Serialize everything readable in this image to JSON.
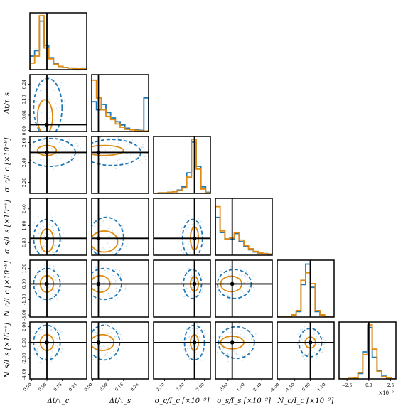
{
  "chart_data": {
    "type": "corner",
    "parameters": [
      {
        "label": "Δt/τ_c",
        "truth": 0.08,
        "ticks": [
          {
            "v": 0.0,
            "t": "0.00"
          },
          {
            "v": 0.08,
            "t": "0.08"
          },
          {
            "v": 0.16,
            "t": "0.16"
          },
          {
            "v": 0.24,
            "t": "0.24"
          }
        ]
      },
      {
        "label": "Δt/τ_s",
        "truth": 0.03,
        "ticks": [
          {
            "v": 0.0,
            "t": "0.00"
          },
          {
            "v": 0.08,
            "t": "0.08"
          },
          {
            "v": 0.16,
            "t": "0.16"
          },
          {
            "v": 0.24,
            "t": "0.24"
          }
        ]
      },
      {
        "label": "σ_c/I_c [×10⁻⁹]",
        "truth": 2.5,
        "ticks": [
          {
            "v": 2.2,
            "t": "2.20"
          },
          {
            "v": 2.4,
            "t": "2.40"
          },
          {
            "v": 2.6,
            "t": "2.60"
          }
        ]
      },
      {
        "label": "σ_s/I_s [×10⁻⁹]",
        "truth": 1.0,
        "ticks": [
          {
            "v": 0.8,
            "t": "0.80"
          },
          {
            "v": 1.6,
            "t": "1.60"
          },
          {
            "v": 2.4,
            "t": "2.40"
          }
        ]
      },
      {
        "label": "N_c/I_c [×10⁻⁹]",
        "truth": 0.0,
        "ticks": [
          {
            "v": -3.0,
            "t": "-3.00"
          },
          {
            "v": -1.5,
            "t": "-1.50"
          },
          {
            "v": 0.0,
            "t": "0.00"
          },
          {
            "v": 1.5,
            "t": "1.50"
          }
        ]
      },
      {
        "label": "N_s/I_s [×10⁻⁹]",
        "truth": 0.0,
        "ticks": [
          {
            "v": -4.0,
            "t": "-4.00"
          },
          {
            "v": -2.0,
            "t": "-2.00"
          },
          {
            "v": 0.0,
            "t": "0.00"
          },
          {
            "v": 2.0,
            "t": "2.00"
          }
        ]
      }
    ],
    "last_axis_ticks": [
      {
        "v": -2.5,
        "t": "−2.5"
      },
      {
        "v": 0.0,
        "t": "0.0"
      },
      {
        "v": 2.5,
        "t": "2.5"
      }
    ],
    "last_axis_offset": "×10⁻⁹",
    "series": [
      {
        "color": "#1f77b4",
        "style": "dashed"
      },
      {
        "color": "#e08a10",
        "style": "solid"
      }
    ],
    "histograms": [
      {
        "blue": [
          0.25,
          0.35,
          0.9,
          0.45,
          0.22,
          0.12,
          0.06,
          0.04,
          0.03,
          0.03,
          0.02,
          0.03
        ],
        "orange": [
          0.12,
          0.25,
          1.0,
          0.4,
          0.2,
          0.1,
          0.06,
          0.04,
          0.03,
          0.02,
          0.02,
          0.02
        ]
      },
      {
        "blue": [
          0.55,
          0.4,
          0.5,
          0.35,
          0.25,
          0.18,
          0.12,
          0.06,
          0.04,
          0.03,
          0.02,
          0.62
        ],
        "orange": [
          0.95,
          0.62,
          0.4,
          0.28,
          0.22,
          0.14,
          0.08,
          0.04,
          0.03,
          0.02,
          0.01,
          0.01
        ]
      },
      {
        "blue": [
          0.0,
          0.01,
          0.01,
          0.02,
          0.03,
          0.06,
          0.12,
          0.38,
          0.95,
          0.5,
          0.12,
          0.02
        ],
        "orange": [
          0.0,
          0.01,
          0.01,
          0.02,
          0.03,
          0.05,
          0.1,
          0.3,
          1.0,
          0.45,
          0.08,
          0.01
        ]
      },
      {
        "blue": [
          0.7,
          0.42,
          0.3,
          0.3,
          0.4,
          0.25,
          0.16,
          0.1,
          0.06,
          0.04,
          0.03,
          0.02
        ],
        "orange": [
          0.9,
          0.45,
          0.3,
          0.32,
          0.42,
          0.28,
          0.18,
          0.12,
          0.07,
          0.04,
          0.03,
          0.02
        ]
      },
      {
        "blue": [
          0.0,
          0.0,
          0.01,
          0.03,
          0.1,
          0.6,
          0.98,
          0.55,
          0.1,
          0.03,
          0.01,
          0.0
        ],
        "orange": [
          0.0,
          0.0,
          0.01,
          0.04,
          0.12,
          0.68,
          0.82,
          0.62,
          0.12,
          0.04,
          0.01,
          0.0
        ]
      },
      {
        "blue": [
          0.0,
          0.0,
          0.01,
          0.02,
          0.1,
          0.5,
          0.95,
          0.4,
          0.15,
          0.05,
          0.02,
          0.0
        ],
        "orange": [
          0.0,
          0.0,
          0.01,
          0.02,
          0.12,
          0.45,
          1.0,
          0.55,
          0.14,
          0.04,
          0.02,
          0.0
        ]
      }
    ],
    "contours": {
      "1-0": {
        "blue": [
          {
            "cx": 0.085,
            "cy": 0.12,
            "rx": 0.075,
            "ry": 0.15
          }
        ],
        "orange": [
          {
            "cx": 0.07,
            "cy": 0.07,
            "rx": 0.04,
            "ry": 0.09
          }
        ]
      },
      "2-0": {
        "blue": [
          {
            "cx": 0.1,
            "cy": 2.5,
            "rx": 0.13,
            "ry": 0.14
          }
        ],
        "orange": [
          {
            "cx": 0.08,
            "cy": 2.52,
            "rx": 0.05,
            "ry": 0.05
          }
        ]
      },
      "2-1": {
        "blue": [
          {
            "cx": 0.1,
            "cy": 2.5,
            "rx": 0.15,
            "ry": 0.13
          }
        ],
        "orange": [
          {
            "cx": 0.06,
            "cy": 2.52,
            "rx": 0.1,
            "ry": 0.05
          }
        ]
      },
      "3-0": {
        "blue": [
          {
            "cx": 0.08,
            "cy": 1.0,
            "rx": 0.07,
            "ry": 0.9
          }
        ],
        "orange": [
          {
            "cx": 0.08,
            "cy": 0.9,
            "rx": 0.035,
            "ry": 0.55
          }
        ]
      },
      "3-1": {
        "blue": [
          {
            "cx": 0.07,
            "cy": 1.05,
            "rx": 0.09,
            "ry": 0.95
          }
        ],
        "orange": [
          {
            "cx": 0.06,
            "cy": 0.85,
            "rx": 0.07,
            "ry": 0.5
          }
        ]
      },
      "3-2": {
        "blue": [
          {
            "cx": 2.48,
            "cy": 1.0,
            "rx": 0.1,
            "ry": 0.9
          }
        ],
        "orange": [
          {
            "cx": 2.5,
            "cy": 1.0,
            "rx": 0.04,
            "ry": 0.55
          }
        ]
      },
      "4-0": {
        "blue": [
          {
            "cx": 0.08,
            "cy": 0.0,
            "rx": 0.07,
            "ry": 1.5
          }
        ],
        "orange": [
          {
            "cx": 0.08,
            "cy": 0.0,
            "rx": 0.035,
            "ry": 0.8
          }
        ]
      },
      "4-1": {
        "blue": [
          {
            "cx": 0.06,
            "cy": 0.0,
            "rx": 0.09,
            "ry": 1.5
          }
        ],
        "orange": [
          {
            "cx": 0.04,
            "cy": 0.0,
            "rx": 0.05,
            "ry": 0.8
          }
        ]
      },
      "4-2": {
        "blue": [
          {
            "cx": 2.48,
            "cy": 0.0,
            "rx": 0.09,
            "ry": 1.4
          }
        ],
        "orange": [
          {
            "cx": 2.5,
            "cy": 0.0,
            "rx": 0.04,
            "ry": 0.7
          }
        ]
      },
      "4-3": {
        "blue": [
          {
            "cx": 1.1,
            "cy": 0.0,
            "rx": 0.8,
            "ry": 1.4
          }
        ],
        "orange": [
          {
            "cx": 0.95,
            "cy": 0.0,
            "rx": 0.5,
            "ry": 0.75
          }
        ]
      },
      "5-0": {
        "blue": [
          {
            "cx": 0.08,
            "cy": 0.0,
            "rx": 0.07,
            "ry": 2.2
          }
        ],
        "orange": [
          {
            "cx": 0.08,
            "cy": 0.0,
            "rx": 0.035,
            "ry": 1.0
          }
        ]
      },
      "5-1": {
        "blue": [
          {
            "cx": 0.06,
            "cy": 0.0,
            "rx": 0.08,
            "ry": 2.2
          }
        ],
        "orange": [
          {
            "cx": 0.05,
            "cy": 0.0,
            "rx": 0.06,
            "ry": 1.0
          }
        ]
      },
      "5-2": {
        "blue": [
          {
            "cx": 2.5,
            "cy": 0.0,
            "rx": 0.1,
            "ry": 2.2
          }
        ],
        "orange": [
          {
            "cx": 2.5,
            "cy": 0.0,
            "rx": 0.04,
            "ry": 1.0
          }
        ]
      },
      "5-3": {
        "blue": [
          {
            "cx": 1.2,
            "cy": 0.0,
            "rx": 0.85,
            "ry": 2.0
          }
        ],
        "orange": [
          {
            "cx": 1.0,
            "cy": 0.0,
            "rx": 0.55,
            "ry": 0.8
          }
        ]
      },
      "5-4": {
        "blue": [
          {
            "cx": 0.0,
            "cy": 0.0,
            "rx": 1.1,
            "ry": 1.8
          }
        ],
        "orange": [
          {
            "cx": 0.0,
            "cy": 0.0,
            "rx": 0.5,
            "ry": 0.7
          }
        ]
      }
    }
  }
}
